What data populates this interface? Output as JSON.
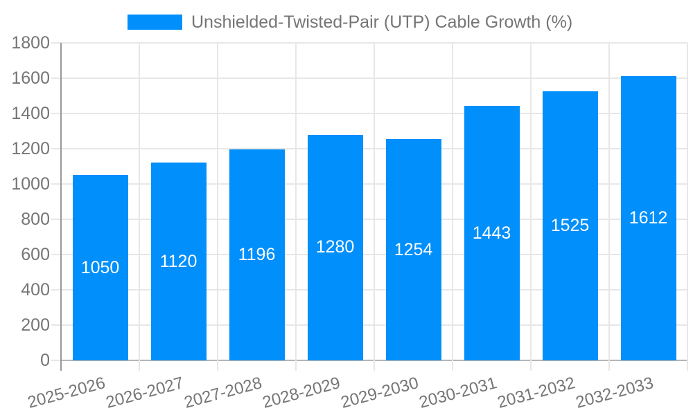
{
  "legend": {
    "label": "Unshielded-Twisted-Pair (UTP) Cable Growth (%)"
  },
  "chart_data": {
    "type": "bar",
    "title": "Unshielded-Twisted-Pair (UTP) Cable Growth (%)",
    "categories": [
      "2025-2026",
      "2026-2027",
      "2027-2028",
      "2028-2029",
      "2029-2030",
      "2030-2031",
      "2031-2032",
      "2032-2033"
    ],
    "values": [
      1050,
      1120,
      1196,
      1280,
      1254,
      1443,
      1525,
      1612
    ],
    "value_labels": [
      "1050",
      "1120",
      "1196",
      "1280",
      "1254",
      "1443",
      "1525",
      "1612"
    ],
    "xlabel": "",
    "ylabel": "",
    "ylim": [
      0,
      1800
    ],
    "ytick_step": 200,
    "ytick_labels": [
      "0",
      "200",
      "400",
      "600",
      "800",
      "1000",
      "1200",
      "1400",
      "1600",
      "1800"
    ],
    "grid": true,
    "legend_position": "top",
    "colors": {
      "bar": "#008FFB",
      "bar_value_text": "#ffffff",
      "axis_text": "#757575",
      "grid_line": "#e7e7e7",
      "y_axis_line": "#999999",
      "x_baseline": "#b6b6b6",
      "background": "#ffffff"
    }
  }
}
